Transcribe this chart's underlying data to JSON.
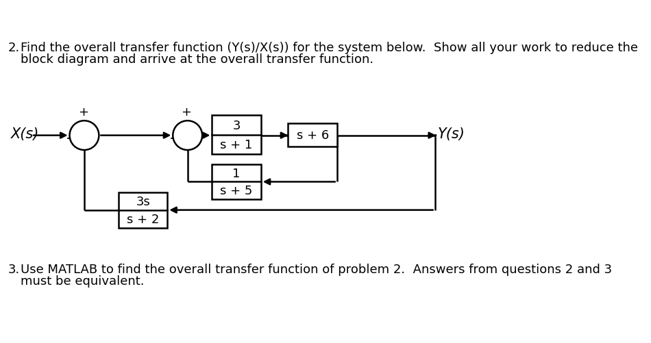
{
  "title2": "Find the overall transfer function (Y(s)/X(s)) for the system below.  Show all your work to reduce the",
  "title2b": "block diagram and arrive at the overall transfer function.",
  "title3": "Use MATLAB to find the overall transfer function of problem 2.  Answers from questions 2 and 3",
  "title3b": "must be equivalent.",
  "bg_color": "#ffffff",
  "text_color": "#000000",
  "label2": "2.",
  "label3": "3.",
  "Xs_label": "X(s)",
  "Ys_label": "Y(s)",
  "block_G1_num": "3",
  "block_G1_den": "s + 1",
  "block_G2_num": "1",
  "block_G2_den": "s + 5",
  "block_forward": "s + 6",
  "block_feedback1_num": "3s",
  "block_feedback1_den": "s + 2",
  "font_size_main": 13,
  "font_size_block": 13
}
